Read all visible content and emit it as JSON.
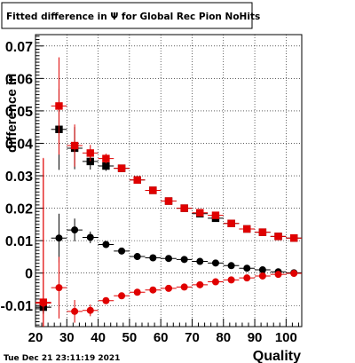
{
  "chart_data": {
    "type": "scatter",
    "title": "Fitted difference in Ψ for Global Rec Pion NoHits",
    "xlabel": "Quality",
    "ylabel": "difference in",
    "timestamp": "Tue Dec 21 23:11:19 2021",
    "xlim": [
      20,
      105
    ],
    "ylim": [
      -0.0165,
      0.0735
    ],
    "grid": true,
    "x_ticks": [
      20,
      30,
      40,
      50,
      60,
      70,
      80,
      90,
      100
    ],
    "y_ticks": [
      -0.01,
      0,
      0.01,
      0.02,
      0.03,
      0.04,
      0.05,
      0.06,
      0.07
    ],
    "x_tick_labels": [
      "20",
      "30",
      "40",
      "50",
      "60",
      "70",
      "80",
      "90",
      "100"
    ],
    "y_tick_labels": [
      "-0.01",
      "0",
      "0.01",
      "0.02",
      "0.03",
      "0.04",
      "0.05",
      "0.06",
      "0.07"
    ],
    "series": [
      {
        "color": "#000000",
        "marker": "square",
        "x": [
          22.5,
          27.5,
          32.5,
          37.5,
          42.5,
          47.5,
          52.5,
          57.5,
          62.5,
          67.5,
          72.5,
          77.5,
          82.5,
          87.5,
          92.5,
          97.5,
          102.5
        ],
        "y": [
          -0.0105,
          0.0443,
          0.0385,
          0.0344,
          0.033,
          0.0323,
          0.0287,
          0.0255,
          0.0222,
          0.02,
          0.0183,
          0.0169,
          0.0153,
          0.0136,
          0.0126,
          0.0113,
          0.0108
        ],
        "err": [
          0.002,
          0.0125,
          0.0065,
          0.0025,
          0.0015,
          0.0008,
          0.0005,
          0.0005,
          0.0005,
          0.0005,
          0.0005,
          0.0005,
          0.0005,
          0.0005,
          0.0005,
          0.0005,
          0.0005
        ]
      },
      {
        "color": "#e00000",
        "marker": "square",
        "x": [
          22.5,
          27.5,
          32.5,
          37.5,
          42.5,
          47.5,
          52.5,
          57.5,
          62.5,
          67.5,
          72.5,
          77.5,
          82.5,
          87.5,
          92.5,
          97.5,
          102.5
        ],
        "y": [
          -0.009,
          0.0515,
          0.0393,
          0.037,
          0.0353,
          0.0323,
          0.0287,
          0.0255,
          0.0222,
          0.02,
          0.0186,
          0.0178,
          0.0153,
          0.0136,
          0.0126,
          0.0113,
          0.0108
        ],
        "err": [
          0.0445,
          0.015,
          0.0065,
          0.0025,
          0.0015,
          0.0008,
          0.0005,
          0.0005,
          0.0005,
          0.0005,
          0.0005,
          0.0005,
          0.0005,
          0.0005,
          0.0005,
          0.0005,
          0.0005
        ]
      },
      {
        "color": "#000000",
        "marker": "circle",
        "x": [
          22.5,
          27.5,
          32.5,
          37.5,
          42.5,
          47.5,
          52.5,
          57.5,
          62.5,
          67.5,
          72.5,
          77.5,
          82.5,
          87.5,
          92.5,
          97.5,
          102.5
        ],
        "y": [
          -0.0105,
          0.0108,
          0.0133,
          0.011,
          0.0088,
          0.0068,
          0.0051,
          0.0047,
          0.0045,
          0.0042,
          0.0036,
          0.0031,
          0.0023,
          0.0015,
          0.001,
          0.0004,
          0.0001
        ],
        "err": [
          0.002,
          0.0075,
          0.0035,
          0.0018,
          0.001,
          0.0007,
          0.0005,
          0.0005,
          0.0005,
          0.0005,
          0.0005,
          0.0005,
          0.0005,
          0.0005,
          0.0005,
          0.0005,
          0.0005
        ]
      },
      {
        "color": "#e00000",
        "marker": "circle",
        "x": [
          22.5,
          27.5,
          32.5,
          37.5,
          42.5,
          47.5,
          52.5,
          57.5,
          62.5,
          67.5,
          72.5,
          77.5,
          82.5,
          87.5,
          92.5,
          97.5,
          102.5
        ],
        "y": [
          -0.0093,
          -0.0045,
          -0.0118,
          -0.0115,
          -0.0085,
          -0.007,
          -0.0059,
          -0.0052,
          -0.0047,
          -0.0043,
          -0.0036,
          -0.0027,
          -0.0021,
          -0.0015,
          -0.0009,
          -0.0004,
          -0.0001
        ],
        "err": [
          0.0445,
          0.0095,
          0.0035,
          0.0018,
          0.001,
          0.0007,
          0.0005,
          0.0005,
          0.0005,
          0.0005,
          0.0005,
          0.0005,
          0.0005,
          0.0005,
          0.0005,
          0.0005,
          0.0005
        ]
      }
    ]
  }
}
